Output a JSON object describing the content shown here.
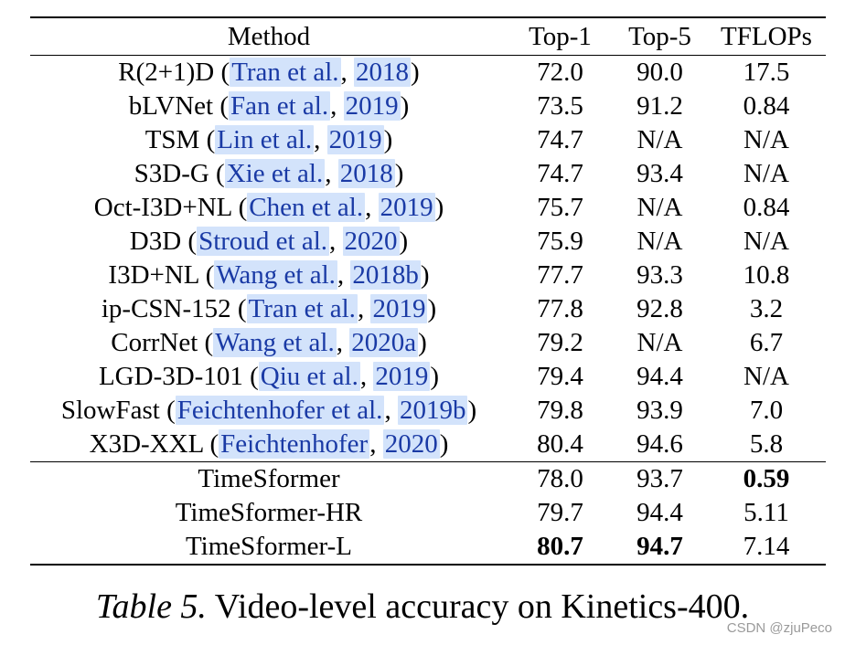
{
  "table": {
    "headers": {
      "method": "Method",
      "top1": "Top-1",
      "top5": "Top-5",
      "tflops": "TFLOPs"
    },
    "baselines": [
      {
        "name": "R(2+1)D",
        "author": "Tran et al.",
        "year": "2018",
        "top1": "72.0",
        "top5": "90.0",
        "tflops": "17.5"
      },
      {
        "name": "bLVNet",
        "author": "Fan et al.",
        "year": "2019",
        "top1": "73.5",
        "top5": "91.2",
        "tflops": "0.84"
      },
      {
        "name": "TSM",
        "author": "Lin et al.",
        "year": "2019",
        "top1": "74.7",
        "top5": "N/A",
        "tflops": "N/A"
      },
      {
        "name": "S3D-G",
        "author": "Xie et al.",
        "year": "2018",
        "top1": "74.7",
        "top5": "93.4",
        "tflops": "N/A"
      },
      {
        "name": "Oct-I3D+NL",
        "author": "Chen et al.",
        "year": "2019",
        "top1": "75.7",
        "top5": "N/A",
        "tflops": "0.84"
      },
      {
        "name": "D3D",
        "author": "Stroud et al.",
        "year": "2020",
        "top1": "75.9",
        "top5": "N/A",
        "tflops": "N/A"
      },
      {
        "name": "I3D+NL",
        "author": "Wang et al.",
        "year": "2018b",
        "top1": "77.7",
        "top5": "93.3",
        "tflops": "10.8"
      },
      {
        "name": "ip-CSN-152",
        "author": "Tran et al.",
        "year": "2019",
        "top1": "77.8",
        "top5": "92.8",
        "tflops": "3.2"
      },
      {
        "name": "CorrNet",
        "author": "Wang et al.",
        "year": "2020a",
        "top1": "79.2",
        "top5": "N/A",
        "tflops": "6.7"
      },
      {
        "name": "LGD-3D-101",
        "author": "Qiu et al.",
        "year": "2019",
        "top1": "79.4",
        "top5": "94.4",
        "tflops": "N/A"
      },
      {
        "name": "SlowFast",
        "author": "Feichtenhofer et al.",
        "year": "2019b",
        "top1": "79.8",
        "top5": "93.9",
        "tflops": "7.0"
      },
      {
        "name": "X3D-XXL",
        "author": "Feichtenhofer",
        "year": "2020",
        "top1": "80.4",
        "top5": "94.6",
        "tflops": "5.8"
      }
    ],
    "ours": [
      {
        "name": "TimeSformer",
        "top1": "78.0",
        "top5": "93.7",
        "tflops": "0.59"
      },
      {
        "name": "TimeSformer-HR",
        "top1": "79.7",
        "top5": "94.4",
        "tflops": "5.11"
      },
      {
        "name": "TimeSformer-L",
        "top1": "80.7",
        "top5": "94.7",
        "tflops": "7.14"
      }
    ]
  },
  "caption": {
    "label": "Table 5.",
    "text": "Video-level accuracy on Kinetics-400."
  },
  "watermark": "CSDN @zjuPeco"
}
